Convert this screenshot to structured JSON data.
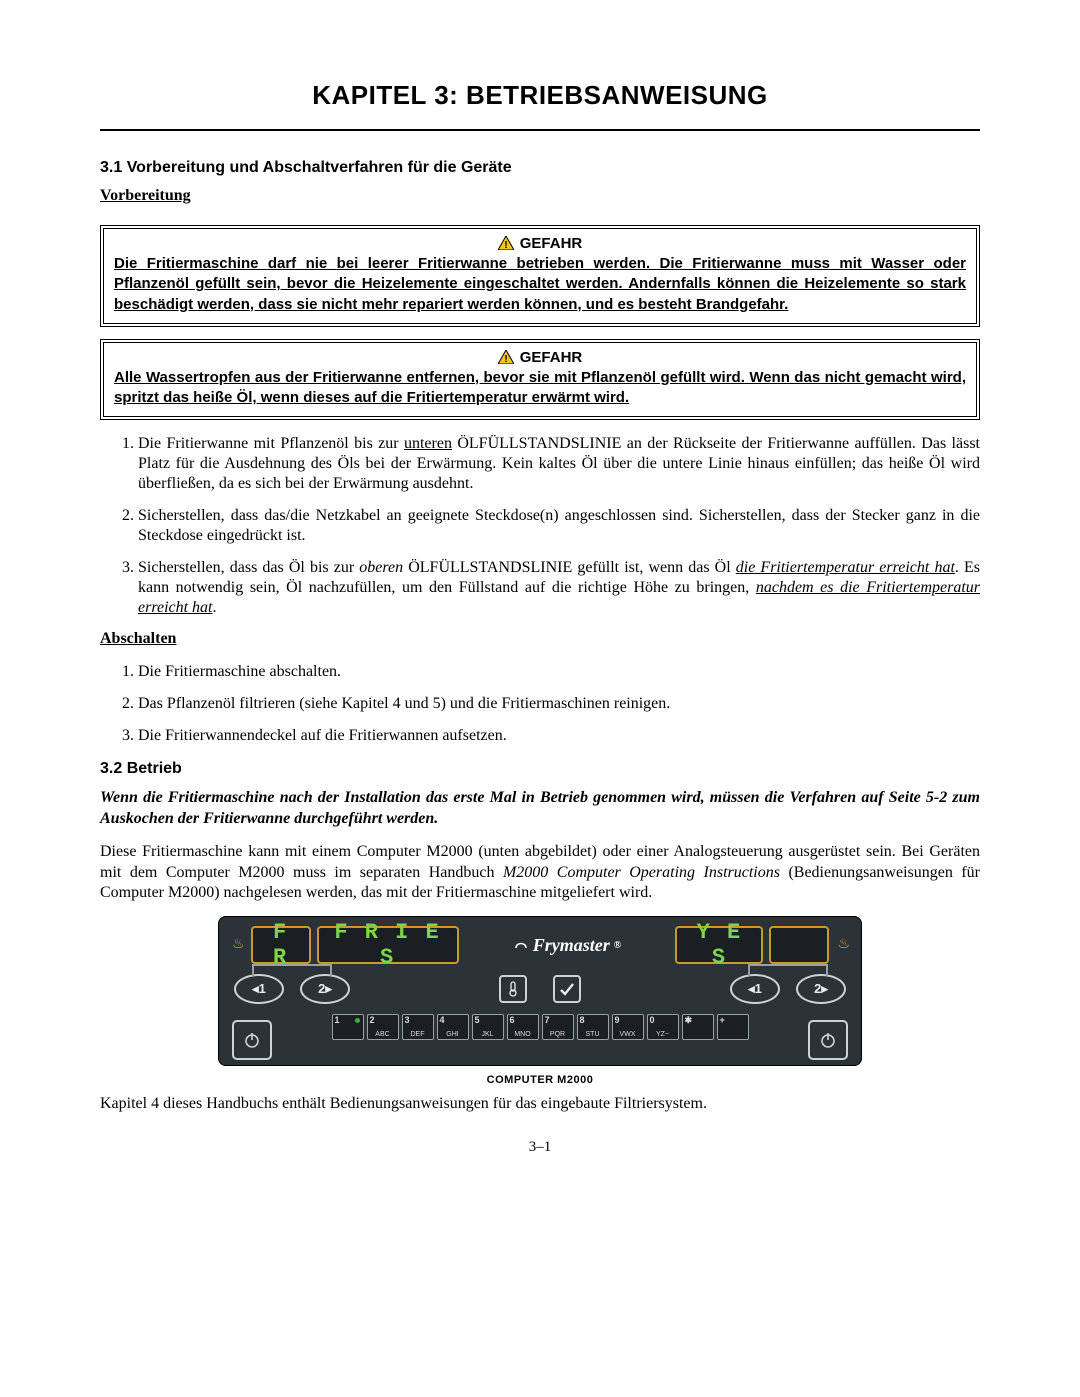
{
  "chapter_title": "KAPITEL 3:  BETRIEBSANWEISUNG",
  "sec31": {
    "head": "3.1  Vorbereitung und Abschaltverfahren für die Geräte",
    "prep_label": "Vorbereitung",
    "danger_label": "GEFAHR",
    "danger1_body": "Die Fritiermaschine darf nie bei leerer Fritierwanne betrieben werden.  Die Fritierwanne muss mit Wasser oder Pflanzenöl gefüllt sein, bevor die Heizelemente eingeschaltet werden. Andernfalls können die Heizelemente so stark beschädigt werden, dass sie nicht mehr repariert werden können, und es besteht Brandgefahr.",
    "danger2_body": "Alle Wassertropfen aus der Fritierwanne entfernen, bevor sie mit Pflanzenöl gefüllt wird. Wenn das nicht gemacht wird, spritzt das heiße Öl, wenn dieses auf die Fritiertemperatur erwärmt wird.",
    "li1_a": "Die Fritierwanne mit Pflanzenöl bis zur ",
    "li1_u": "unteren",
    "li1_b": " ÖLFÜLLSTANDSLINIE an der Rückseite der Fritierwanne auffüllen.  Das lässt Platz für die Ausdehnung des Öls bei der Erwärmung. Kein kaltes Öl über die untere Linie hinaus einfüllen; das heiße Öl wird überfließen, da es sich bei der Erwärmung ausdehnt.",
    "li2": "Sicherstellen, dass das/die Netzkabel an geeignete Steckdose(n) angeschlossen sind.  Sicherstellen, dass der Stecker ganz in die Steckdose eingedrückt ist.",
    "li3_a": "Sicherstellen, dass das Öl bis zur ",
    "li3_i": "oberen",
    "li3_b": " ÖLFÜLLSTANDSLINIE gefüllt ist, wenn das Öl ",
    "li3_iu1": "die Fritiertemperatur erreicht hat",
    "li3_c": ".  Es kann notwendig sein, Öl nachzufüllen, um den Füllstand auf die richtige Höhe zu bringen, ",
    "li3_iu2": "nachdem es die Fritiertemperatur erreicht hat",
    "li3_d": ".",
    "shutdown_label": "Abschalten",
    "sd1": "Die Fritiermaschine abschalten.",
    "sd2": "Das Pflanzenöl filtrieren (siehe Kapitel 4 und 5) und die Fritiermaschinen reinigen.",
    "sd3": "Die Fritierwannendeckel auf die Fritierwannen aufsetzen."
  },
  "sec32": {
    "head": "3.2  Betrieb",
    "note": "Wenn die Fritiermaschine nach der Installation das erste Mal in Betrieb genommen wird, müssen die Verfahren auf Seite 5-2 zum Auskochen der Fritierwanne durchgeführt werden.",
    "body_a": "Diese Fritiermaschine kann mit einem Computer M2000 (unten abgebildet) oder einer Analogsteuerung ausgerüstet sein.  Bei Geräten mit dem Computer M2000 muss im separaten Handbuch ",
    "body_i": "M2000 Computer Operating Instructions",
    "body_b": " (Bedienungsanweisungen für Computer M2000) nachgelesen werden, das mit der Fritiermaschine mitgeliefert wird."
  },
  "panel": {
    "bg_color": "#2b3238",
    "border_color": "#c79a2e",
    "seg_color": "#7bd64a",
    "seg_left_small": "F R",
    "seg_left_main": "F R I E S",
    "seg_right_main": "Y E S",
    "brand": "Frymaster",
    "btn_left": [
      "◂1",
      "2▸"
    ],
    "btn_right": [
      "◂1",
      "2▸"
    ],
    "keys": [
      {
        "n": "1",
        "l": "",
        "dot": true
      },
      {
        "n": "2",
        "l": "ABC"
      },
      {
        "n": "3",
        "l": "DEF"
      },
      {
        "n": "4",
        "l": "GHI"
      },
      {
        "n": "5",
        "l": "JKL"
      },
      {
        "n": "6",
        "l": "MNO"
      },
      {
        "n": "7",
        "l": "PQR"
      },
      {
        "n": "8",
        "l": "STU"
      },
      {
        "n": "9",
        "l": "VWX"
      },
      {
        "n": "0",
        "l": "YZ−"
      },
      {
        "n": "✱",
        "l": ""
      },
      {
        "n": "+",
        "l": ""
      }
    ],
    "caption": "COMPUTER M2000"
  },
  "after_panel": "Kapitel 4 dieses Handbuchs enthält Bedienungsanweisungen für das eingebaute Filtriersystem.",
  "page_num": "3–1"
}
